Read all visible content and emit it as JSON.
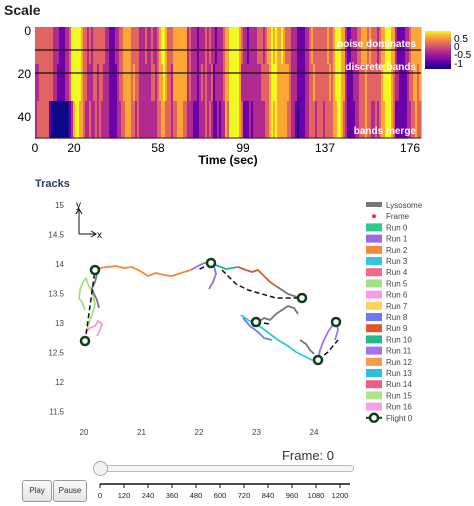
{
  "heatmap": {
    "title": "Scale",
    "xlabel": "Time (sec)",
    "x_ticks": [
      "0",
      "20",
      "58",
      "99",
      "137",
      "176"
    ],
    "y_ticks": [
      "0",
      "20",
      "40"
    ],
    "annotations": [
      "noise dominates",
      "discrete bands",
      "bands merge"
    ],
    "colorbar_ticks": [
      "0.5",
      "0",
      "-0.5",
      "-1"
    ],
    "colormap": [
      "#0d0887",
      "#6a00a8",
      "#b12a90",
      "#e16462",
      "#fca636",
      "#f0f921"
    ]
  },
  "tracks": {
    "title": "Tracks",
    "axis_y": "y",
    "axis_x": "x",
    "x_ticks": [
      "20",
      "21",
      "22",
      "23",
      "24"
    ],
    "y_ticks": [
      "15",
      "14.5",
      "14",
      "13.5",
      "13",
      "12.5",
      "12",
      "11.5"
    ],
    "legend": [
      {
        "label": "Lysosome",
        "color": "#777777",
        "kind": "line"
      },
      {
        "label": "Frame",
        "color": "#e8392b",
        "kind": "dot"
      },
      {
        "label": "Run 0",
        "color": "#2fc98d",
        "kind": "box"
      },
      {
        "label": "Run 1",
        "color": "#9d6be8",
        "kind": "box"
      },
      {
        "label": "Run 2",
        "color": "#f28a3c",
        "kind": "box"
      },
      {
        "label": "Run 3",
        "color": "#2cc9e0",
        "kind": "box"
      },
      {
        "label": "Run 4",
        "color": "#f2678a",
        "kind": "box"
      },
      {
        "label": "Run 5",
        "color": "#a3df85",
        "kind": "box"
      },
      {
        "label": "Run 6",
        "color": "#f49be4",
        "kind": "box"
      },
      {
        "label": "Run 7",
        "color": "#fbd25d",
        "kind": "box"
      },
      {
        "label": "Run 8",
        "color": "#6c7df2",
        "kind": "box"
      },
      {
        "label": "Run 9",
        "color": "#e0542f",
        "kind": "box"
      },
      {
        "label": "Run 10",
        "color": "#22b78f",
        "kind": "box"
      },
      {
        "label": "Run 11",
        "color": "#a472ee",
        "kind": "box"
      },
      {
        "label": "Run 12",
        "color": "#f79a4a",
        "kind": "box"
      },
      {
        "label": "Run 13",
        "color": "#28bfe0",
        "kind": "box"
      },
      {
        "label": "Run 14",
        "color": "#ec5e86",
        "kind": "box"
      },
      {
        "label": "Run 15",
        "color": "#b2e289",
        "kind": "box"
      },
      {
        "label": "Run 16",
        "color": "#f3a2ea",
        "kind": "box"
      },
      {
        "label": "Flight 0",
        "color": "#0e3d1d",
        "kind": "flight"
      }
    ]
  },
  "player": {
    "frame_label": "Frame: 0",
    "play_label": "Play",
    "pause_label": "Pause",
    "ticks": [
      "0",
      "120",
      "240",
      "360",
      "480",
      "600",
      "720",
      "840",
      "960",
      "1080",
      "1200"
    ]
  }
}
